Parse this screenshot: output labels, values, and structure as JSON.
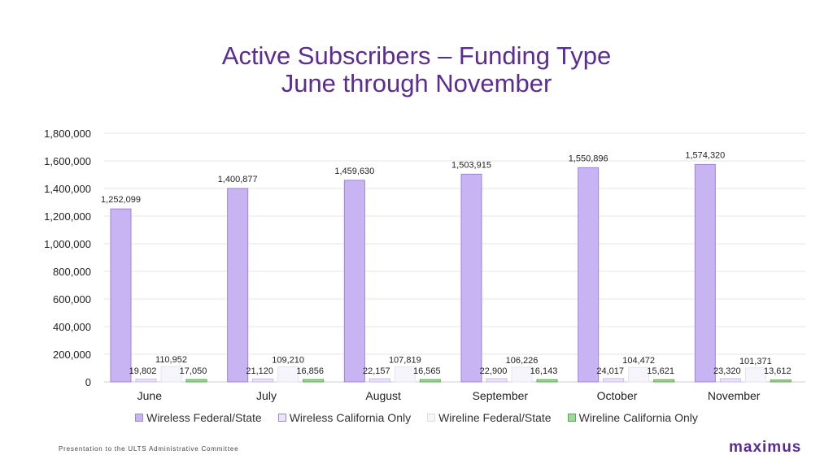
{
  "title": {
    "line1": "Active Subscribers – Funding Type",
    "line2": "June through November"
  },
  "footer": "Presentation to the ULTS Administrative Committee",
  "logo": "maximus",
  "colors": {
    "title": "#5b2c91",
    "wireless_fed": "#c8b4f2",
    "wireless_ca": "#ebe3fa",
    "wireline_fed": "#f7f5fc",
    "wireline_ca": "#9fd99a",
    "gridline": "#e6e6e6"
  },
  "chart_data": {
    "type": "bar",
    "categories": [
      "June",
      "July",
      "August",
      "September",
      "October",
      "November"
    ],
    "series": [
      {
        "name": "Wireless Federal/State",
        "values": [
          1252099,
          1400877,
          1459630,
          1503915,
          1550896,
          1574320
        ],
        "labels": [
          "1,252,099",
          "1,400,877",
          "1,459,630",
          "1,503,915",
          "1,550,896",
          "1,574,320"
        ]
      },
      {
        "name": "Wireless California Only",
        "values": [
          19802,
          21120,
          22157,
          22900,
          24017,
          23320
        ],
        "labels": [
          "19,802",
          "21,120",
          "22,157",
          "22,900",
          "24,017",
          "23,320"
        ]
      },
      {
        "name": "Wireline Federal/State",
        "values": [
          110952,
          109210,
          107819,
          106226,
          104472,
          101371
        ],
        "labels": [
          "110,952",
          "109,210",
          "107,819",
          "106,226",
          "104,472",
          "101,371"
        ]
      },
      {
        "name": "Wireline California Only",
        "values": [
          17050,
          16856,
          16565,
          16143,
          15621,
          13612
        ],
        "labels": [
          "17,050",
          "16,856",
          "16,565",
          "16,143",
          "15,621",
          "13,612"
        ]
      }
    ],
    "ylim": [
      0,
      1800000
    ],
    "yticks": [
      0,
      200000,
      400000,
      600000,
      800000,
      1000000,
      1200000,
      1400000,
      1600000,
      1800000
    ],
    "ytick_labels": [
      "0",
      "200,000",
      "400,000",
      "600,000",
      "800,000",
      "1,000,000",
      "1,200,000",
      "1,400,000",
      "1,600,000",
      "1,800,000"
    ],
    "grid": true,
    "legend_position": "bottom"
  }
}
